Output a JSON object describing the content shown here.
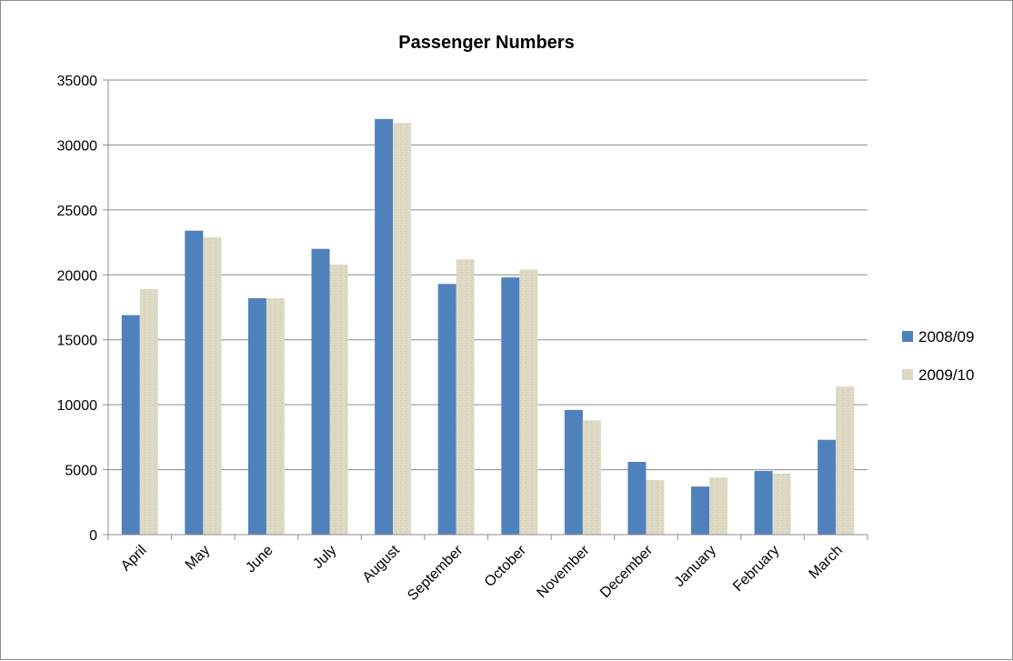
{
  "chart_data": {
    "type": "bar",
    "title": "Passenger Numbers",
    "xlabel": "",
    "ylabel": "",
    "categories": [
      "April",
      "May",
      "June",
      "July",
      "August",
      "September",
      "October",
      "November",
      "December",
      "January",
      "February",
      "March"
    ],
    "series": [
      {
        "name": "2008/09",
        "color": "#4f81bd",
        "values": [
          16900,
          23400,
          18200,
          22000,
          32000,
          19300,
          19800,
          9600,
          5600,
          3700,
          4900,
          7300
        ]
      },
      {
        "name": "2009/10",
        "color": "#ddd9c3",
        "values": [
          18900,
          22900,
          18200,
          20800,
          31700,
          21200,
          20400,
          8800,
          4200,
          4400,
          4700,
          11400
        ]
      }
    ],
    "ylim": [
      0,
      35000
    ],
    "yticks": [
      0,
      5000,
      10000,
      15000,
      20000,
      25000,
      30000,
      35000
    ],
    "grid": true,
    "legend_position": "right"
  }
}
